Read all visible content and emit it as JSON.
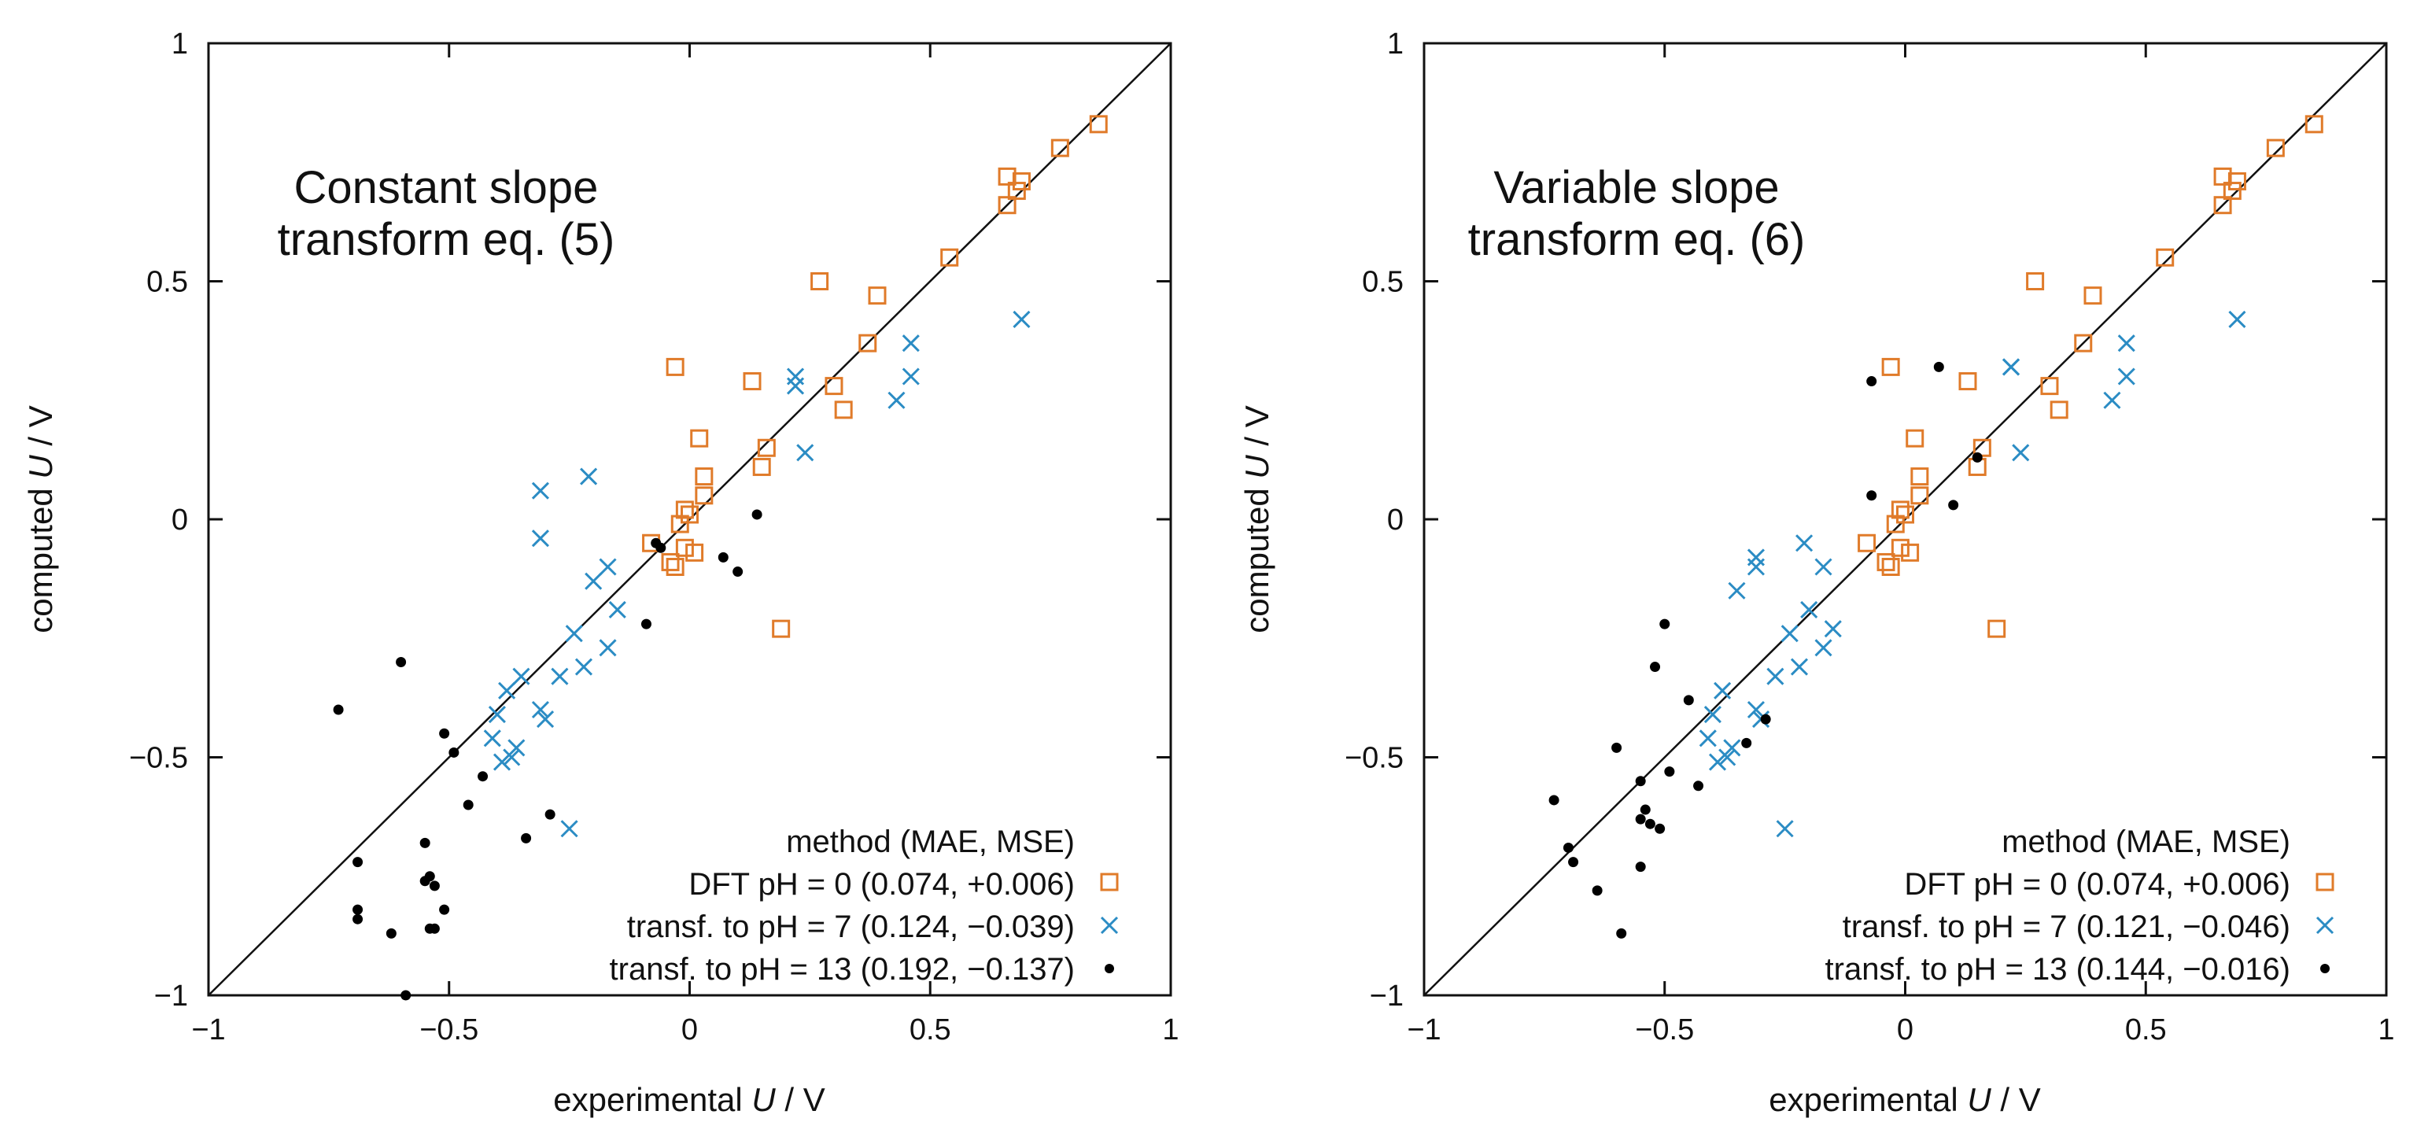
{
  "colors": {
    "dft": "#e07b2a",
    "ph7": "#2b8cc4",
    "ph13": "#000000",
    "axis": "#111111"
  },
  "chart_data": [
    {
      "type": "scatter",
      "title_line1": "Constant slope",
      "title_line2": "transform eq. (5)",
      "xlabel_prefix": "experimental ",
      "xlabel_var": "U",
      "xlabel_suffix": " / V",
      "ylabel_prefix": "computed ",
      "ylabel_var": "U",
      "ylabel_suffix": " / V",
      "xlim": [
        -1,
        1
      ],
      "ylim": [
        -1,
        1
      ],
      "xticks": [
        {
          "value": -1,
          "label": "−1"
        },
        {
          "value": -0.5,
          "label": "−0.5"
        },
        {
          "value": 0,
          "label": "0"
        },
        {
          "value": 0.5,
          "label": "0.5"
        },
        {
          "value": 1,
          "label": "1"
        }
      ],
      "yticks": [
        {
          "value": -1,
          "label": "−1"
        },
        {
          "value": -0.5,
          "label": "−0.5"
        },
        {
          "value": 0,
          "label": "0"
        },
        {
          "value": 0.5,
          "label": "0.5"
        },
        {
          "value": 1,
          "label": "1"
        }
      ],
      "diagonal": true,
      "legend_title": "method (MAE, MSE)",
      "series": [
        {
          "name": "DFT pH = 0 (0.074, +0.006)",
          "marker": "square",
          "color": "#e07b2a",
          "points": [
            [
              0.85,
              0.83
            ],
            [
              0.77,
              0.78
            ],
            [
              0.69,
              0.71
            ],
            [
              0.68,
              0.69
            ],
            [
              0.66,
              0.72
            ],
            [
              0.66,
              0.66
            ],
            [
              0.54,
              0.55
            ],
            [
              0.39,
              0.47
            ],
            [
              0.37,
              0.37
            ],
            [
              0.27,
              0.5
            ],
            [
              0.3,
              0.28
            ],
            [
              0.32,
              0.23
            ],
            [
              0.13,
              0.29
            ],
            [
              0.16,
              0.15
            ],
            [
              0.15,
              0.11
            ],
            [
              0.02,
              0.17
            ],
            [
              0.03,
              0.09
            ],
            [
              0.03,
              0.05
            ],
            [
              -0.03,
              0.32
            ],
            [
              -0.01,
              0.02
            ],
            [
              0.0,
              0.01
            ],
            [
              -0.02,
              -0.01
            ],
            [
              -0.01,
              -0.06
            ],
            [
              0.01,
              -0.07
            ],
            [
              -0.04,
              -0.09
            ],
            [
              -0.03,
              -0.1
            ],
            [
              -0.08,
              -0.05
            ],
            [
              0.19,
              -0.23
            ]
          ]
        },
        {
          "name": "transf. to pH = 7 (0.124, −0.039)",
          "marker": "cross",
          "color": "#2b8cc4",
          "points": [
            [
              0.69,
              0.42
            ],
            [
              0.46,
              0.37
            ],
            [
              0.46,
              0.3
            ],
            [
              0.43,
              0.25
            ],
            [
              0.22,
              0.3
            ],
            [
              0.22,
              0.28
            ],
            [
              0.24,
              0.14
            ],
            [
              -0.31,
              0.06
            ],
            [
              -0.21,
              0.09
            ],
            [
              -0.31,
              -0.04
            ],
            [
              -0.17,
              -0.1
            ],
            [
              -0.2,
              -0.13
            ],
            [
              -0.15,
              -0.19
            ],
            [
              -0.24,
              -0.24
            ],
            [
              -0.17,
              -0.27
            ],
            [
              -0.22,
              -0.31
            ],
            [
              -0.27,
              -0.33
            ],
            [
              -0.35,
              -0.33
            ],
            [
              -0.38,
              -0.36
            ],
            [
              -0.31,
              -0.4
            ],
            [
              -0.4,
              -0.41
            ],
            [
              -0.3,
              -0.42
            ],
            [
              -0.41,
              -0.46
            ],
            [
              -0.36,
              -0.48
            ],
            [
              -0.39,
              -0.51
            ],
            [
              -0.37,
              -0.5
            ],
            [
              -0.25,
              -0.65
            ]
          ]
        },
        {
          "name": "transf. to pH = 13 (0.192, −0.137)",
          "marker": "dot",
          "color": "#000000",
          "points": [
            [
              -0.73,
              -0.4
            ],
            [
              -0.6,
              -0.3
            ],
            [
              -0.51,
              -0.45
            ],
            [
              -0.49,
              -0.49
            ],
            [
              -0.43,
              -0.54
            ],
            [
              -0.46,
              -0.6
            ],
            [
              -0.29,
              -0.62
            ],
            [
              -0.34,
              -0.67
            ],
            [
              -0.55,
              -0.68
            ],
            [
              -0.69,
              -0.72
            ],
            [
              -0.54,
              -0.75
            ],
            [
              -0.55,
              -0.76
            ],
            [
              -0.53,
              -0.77
            ],
            [
              -0.51,
              -0.82
            ],
            [
              -0.69,
              -0.82
            ],
            [
              -0.69,
              -0.84
            ],
            [
              -0.62,
              -0.87
            ],
            [
              -0.54,
              -0.86
            ],
            [
              -0.53,
              -0.86
            ],
            [
              -0.59,
              -1.0
            ],
            [
              0.14,
              0.01
            ],
            [
              -0.07,
              -0.05
            ],
            [
              -0.06,
              -0.06
            ],
            [
              0.07,
              -0.08
            ],
            [
              0.1,
              -0.11
            ],
            [
              -0.09,
              -0.22
            ]
          ]
        }
      ]
    },
    {
      "type": "scatter",
      "title_line1": "Variable slope",
      "title_line2": "transform eq. (6)",
      "xlabel_prefix": "experimental ",
      "xlabel_var": "U",
      "xlabel_suffix": " / V",
      "ylabel_prefix": "computed ",
      "ylabel_var": "U",
      "ylabel_suffix": " / V",
      "xlim": [
        -1,
        1
      ],
      "ylim": [
        -1,
        1
      ],
      "xticks": [
        {
          "value": -1,
          "label": "−1"
        },
        {
          "value": -0.5,
          "label": "−0.5"
        },
        {
          "value": 0,
          "label": "0"
        },
        {
          "value": 0.5,
          "label": "0.5"
        },
        {
          "value": 1,
          "label": "1"
        }
      ],
      "yticks": [
        {
          "value": -1,
          "label": "−1"
        },
        {
          "value": -0.5,
          "label": "−0.5"
        },
        {
          "value": 0,
          "label": "0"
        },
        {
          "value": 0.5,
          "label": "0.5"
        },
        {
          "value": 1,
          "label": "1"
        }
      ],
      "diagonal": true,
      "legend_title": "method (MAE, MSE)",
      "series": [
        {
          "name": "DFT pH = 0 (0.074, +0.006)",
          "marker": "square",
          "color": "#e07b2a",
          "points": [
            [
              0.85,
              0.83
            ],
            [
              0.77,
              0.78
            ],
            [
              0.69,
              0.71
            ],
            [
              0.68,
              0.69
            ],
            [
              0.66,
              0.72
            ],
            [
              0.66,
              0.66
            ],
            [
              0.54,
              0.55
            ],
            [
              0.39,
              0.47
            ],
            [
              0.37,
              0.37
            ],
            [
              0.27,
              0.5
            ],
            [
              0.3,
              0.28
            ],
            [
              0.32,
              0.23
            ],
            [
              0.13,
              0.29
            ],
            [
              0.16,
              0.15
            ],
            [
              0.15,
              0.11
            ],
            [
              0.02,
              0.17
            ],
            [
              0.03,
              0.09
            ],
            [
              0.03,
              0.05
            ],
            [
              -0.03,
              0.32
            ],
            [
              -0.01,
              0.02
            ],
            [
              0.0,
              0.01
            ],
            [
              -0.02,
              -0.01
            ],
            [
              -0.01,
              -0.06
            ],
            [
              0.01,
              -0.07
            ],
            [
              -0.04,
              -0.09
            ],
            [
              -0.03,
              -0.1
            ],
            [
              -0.08,
              -0.05
            ],
            [
              0.19,
              -0.23
            ]
          ]
        },
        {
          "name": "transf. to pH = 7 (0.121, −0.046)",
          "marker": "cross",
          "color": "#2b8cc4",
          "points": [
            [
              0.69,
              0.42
            ],
            [
              0.46,
              0.37
            ],
            [
              0.46,
              0.3
            ],
            [
              0.43,
              0.25
            ],
            [
              0.22,
              0.32
            ],
            [
              0.22,
              0.32
            ],
            [
              0.24,
              0.14
            ],
            [
              -0.31,
              -0.08
            ],
            [
              -0.31,
              -0.1
            ],
            [
              -0.21,
              -0.05
            ],
            [
              -0.35,
              -0.15
            ],
            [
              -0.17,
              -0.1
            ],
            [
              -0.2,
              -0.19
            ],
            [
              -0.15,
              -0.23
            ],
            [
              -0.24,
              -0.24
            ],
            [
              -0.17,
              -0.27
            ],
            [
              -0.22,
              -0.31
            ],
            [
              -0.27,
              -0.33
            ],
            [
              -0.38,
              -0.36
            ],
            [
              -0.31,
              -0.4
            ],
            [
              -0.4,
              -0.41
            ],
            [
              -0.3,
              -0.42
            ],
            [
              -0.41,
              -0.46
            ],
            [
              -0.36,
              -0.48
            ],
            [
              -0.39,
              -0.51
            ],
            [
              -0.37,
              -0.5
            ],
            [
              -0.25,
              -0.65
            ]
          ]
        },
        {
          "name": "transf. to pH = 13 (0.144, −0.016)",
          "marker": "dot",
          "color": "#000000",
          "points": [
            [
              -0.07,
              0.29
            ],
            [
              0.07,
              0.32
            ],
            [
              0.15,
              0.13
            ],
            [
              -0.07,
              0.05
            ],
            [
              0.1,
              0.03
            ],
            [
              -0.5,
              -0.22
            ],
            [
              -0.52,
              -0.31
            ],
            [
              -0.45,
              -0.38
            ],
            [
              -0.29,
              -0.42
            ],
            [
              -0.33,
              -0.47
            ],
            [
              -0.6,
              -0.48
            ],
            [
              -0.49,
              -0.53
            ],
            [
              -0.55,
              -0.55
            ],
            [
              -0.43,
              -0.56
            ],
            [
              -0.73,
              -0.59
            ],
            [
              -0.54,
              -0.61
            ],
            [
              -0.55,
              -0.63
            ],
            [
              -0.53,
              -0.64
            ],
            [
              -0.51,
              -0.65
            ],
            [
              -0.7,
              -0.69
            ],
            [
              -0.69,
              -0.72
            ],
            [
              -0.55,
              -0.73
            ],
            [
              -0.64,
              -0.78
            ],
            [
              -0.59,
              -0.87
            ]
          ]
        }
      ]
    }
  ]
}
